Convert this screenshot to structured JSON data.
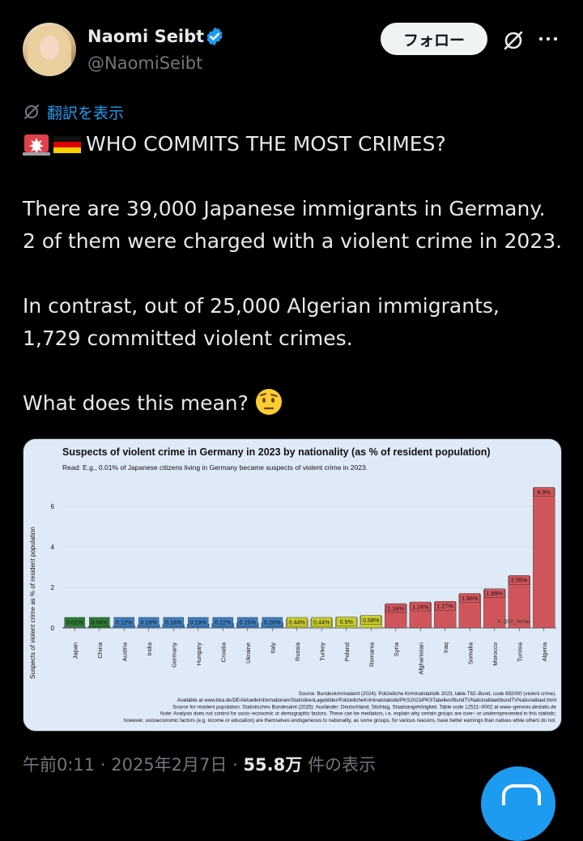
{
  "author": {
    "name": "Naomi Seibt",
    "handle": "@NaomiSeibt",
    "verified_color": "#1d9bf0"
  },
  "actions": {
    "follow_label": "フォロー",
    "grok_icon": "grok-icon",
    "more_icon": "more-icon"
  },
  "translate_label": "翻訳を表示",
  "tweet": {
    "headline": "WHO COMMITS THE MOST CRIMES?",
    "para1": "There are 39,000 Japanese immigrants in Germany. 2 of them were charged with a violent crime in 2023.",
    "para2": "In contrast, out of 25,000 Algerian immigrants, 1,729 committed violent crimes.",
    "para3": "What does this mean?"
  },
  "chart_data": {
    "type": "bar",
    "title": "Suspects of violent crime in Germany in 2023 by nationality (as % of resident population)",
    "subtitle": "Read: E.g., 0.01% of Japanese citizens living in Germany became suspects of violent crime in 2023.",
    "ylabel": "Suspects of violent crime as % of resident population",
    "ylim": [
      0,
      7
    ],
    "yticks": [
      0,
      2,
      4,
      6
    ],
    "categories": [
      "Japan",
      "China",
      "Austria",
      "India",
      "Germany",
      "Hungary",
      "Croatia",
      "Ukraine",
      "Italy",
      "Russia",
      "Turkey",
      "Poland",
      "Romania",
      "Syria",
      "Afghanistan",
      "Iraq",
      "Somalia",
      "Morocco",
      "Tunisia",
      "Algeria"
    ],
    "values": [
      0.01,
      0.08,
      0.12,
      0.16,
      0.16,
      0.19,
      0.22,
      0.25,
      0.26,
      0.44,
      0.44,
      0.5,
      0.58,
      1.16,
      1.24,
      1.27,
      1.66,
      1.89,
      2.55,
      6.9
    ],
    "labels": [
      "0.01%",
      "0.08%",
      "0.12%",
      "0.16%",
      "0.16%",
      "0.19%",
      "0.22%",
      "0.25%",
      "0.26%",
      "0.44%",
      "0.44%",
      "0.5%",
      "0.58%",
      "1.16%",
      "1.24%",
      "1.27%",
      "1.66%",
      "1.89%",
      "2.55%",
      "6.9%"
    ],
    "colors": [
      "#2e7d32",
      "#2e7d32",
      "#3f7fbf",
      "#3f7fbf",
      "#3f7fbf",
      "#3f7fbf",
      "#3f7fbf",
      "#3f7fbf",
      "#3f7fbf",
      "#c9cc2e",
      "#c9cc2e",
      "#c9cc2e",
      "#c9cc2e",
      "#d0555a",
      "#d0555a",
      "#d0555a",
      "#d0555a",
      "#d0555a",
      "#d0555a",
      "#d0555a"
    ],
    "watermark": "X: @Dr_Veritas",
    "notes": [
      "Source: Bundeskriminalamt (2024): Polizeiliche Kriminalstatistik 2023, table T62–Bund, code 892000 (violent crime).",
      "Available at www.bka.de/DE/AktuelleInformationen/StatistikenLagebilder/PolizeilicheKriminalstatistik/PKS2023/PKSTabellen/BundTVNationalitaet/bundTVNationalitaet.html",
      "Source for resident population: Statistisches Bundesamt (2025): Ausländer: Deutschland, Stichtag, Staatsangehörigkeit. Table code 12521–0002 at www–genesis.destatis.de",
      "Note: Analysis does not control for socio–economic or demographic factors. These can be mediators, i.e. explain why certain groups are over– or underrepresented in this statistic;",
      "however, socioeconomic factors (e.g. income or education) are themselves endogeneous to nationality, as some groups, for various reasons, have better earnings than natives while others do not."
    ]
  },
  "meta": {
    "time": "午前0:11",
    "date": "2025年2月7日",
    "views": "55.8万",
    "views_suffix": "件の表示"
  }
}
